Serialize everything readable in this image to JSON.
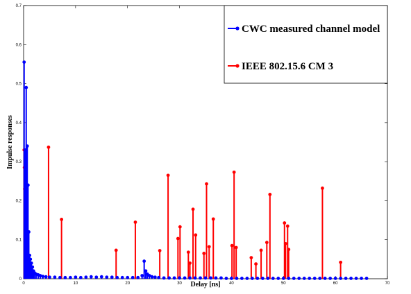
{
  "chart_data": {
    "type": "stem",
    "title": "",
    "xlabel": "Delay [ns]",
    "ylabel": "Impulse responses",
    "xlim": [
      0,
      70
    ],
    "ylim": [
      0,
      0.7
    ],
    "xticks": [
      0,
      10,
      20,
      30,
      40,
      50,
      60,
      70
    ],
    "yticks": [
      0,
      0.1,
      0.2,
      0.3,
      0.4,
      0.5,
      0.6,
      0.7
    ],
    "xtick_labels": [
      "0",
      "10",
      "20",
      "30",
      "40",
      "50",
      "60",
      "70"
    ],
    "ytick_labels": [
      "0",
      "0.1",
      "0.2",
      "0.3",
      "0.4",
      "0.5",
      "0.6",
      "0.7"
    ],
    "grid": false,
    "legend_position": "top-right",
    "series": [
      {
        "name": "CWC measured channel model",
        "color": "#0000ff",
        "x": [
          0.1,
          0.3,
          0.5,
          0.7,
          0.85,
          1.0,
          1.15,
          1.3,
          1.5,
          1.7,
          1.9,
          2.1,
          2.4,
          2.8,
          3.2,
          3.7,
          4.3,
          5.0,
          6.0,
          7.0,
          8.0,
          9.0,
          10.0,
          11.0,
          12.0,
          13.0,
          14.0,
          15.0,
          16.0,
          17.0,
          18.0,
          19.0,
          20.0,
          21.0,
          22.0,
          22.8,
          23.2,
          23.5,
          23.8,
          24.2,
          24.7,
          25.3,
          26.0,
          27.0,
          28.0,
          29.0,
          30.0,
          31.0,
          32.0,
          33.0,
          34.0,
          35.0,
          36.0,
          37.0,
          38.0,
          39.0,
          40.0,
          41.0,
          42.0,
          43.0,
          44.0,
          45.0,
          46.0,
          47.0,
          48.0,
          49.0,
          50.0,
          51.0,
          52.0,
          53.0,
          54.0,
          55.0,
          56.0,
          57.0,
          58.0,
          59.0,
          60.0,
          61.0,
          62.0,
          63.0,
          64.0,
          65.0,
          66.0
        ],
        "values": [
          0.555,
          0.33,
          0.49,
          0.34,
          0.24,
          0.12,
          0.06,
          0.05,
          0.04,
          0.03,
          0.02,
          0.015,
          0.012,
          0.01,
          0.008,
          0.006,
          0.005,
          0.004,
          0.004,
          0.003,
          0.003,
          0.003,
          0.004,
          0.003,
          0.004,
          0.005,
          0.004,
          0.005,
          0.004,
          0.004,
          0.003,
          0.003,
          0.003,
          0.003,
          0.003,
          0.008,
          0.045,
          0.02,
          0.012,
          0.008,
          0.005,
          0.004,
          0.003,
          0.002,
          0.002,
          0.002,
          0.002,
          0.002,
          0.002,
          0.002,
          0.002,
          0.002,
          0.002,
          0.002,
          0.002,
          0.001,
          0.001,
          0.001,
          0.001,
          0.001,
          0.001,
          0.001,
          0.001,
          0.001,
          0.001,
          0.001,
          0.001,
          0.001,
          0.001,
          0.001,
          0.001,
          0.001,
          0.001,
          0.001,
          0.001,
          0.001,
          0.001,
          0.001,
          0.001,
          0.001,
          0.001,
          0.001,
          0.001
        ]
      },
      {
        "name": "IEEE 802.15.6 CM 3",
        "color": "#ff0000",
        "x": [
          0.1,
          0.15,
          0.2,
          0.25,
          0.3,
          0.35,
          0.4,
          0.45,
          0.5,
          0.6,
          0.7,
          0.8,
          0.9,
          1.0,
          1.2,
          4.8,
          7.3,
          17.8,
          21.5,
          26.2,
          27.8,
          29.7,
          30.1,
          31.7,
          32.0,
          32.6,
          33.1,
          34.7,
          35.2,
          35.7,
          36.5,
          40.1,
          40.5,
          40.9,
          43.8,
          44.7,
          45.7,
          46.8,
          47.4,
          50.2,
          50.4,
          50.8,
          51.0,
          57.5,
          61.0
        ],
        "values": [
          0.33,
          0.285,
          0.23,
          0.15,
          0.13,
          0.1,
          0.08,
          0.06,
          0.05,
          0.045,
          0.04,
          0.03,
          0.02,
          0.015,
          0.01,
          0.337,
          0.152,
          0.073,
          0.145,
          0.072,
          0.265,
          0.103,
          0.133,
          0.068,
          0.04,
          0.178,
          0.112,
          0.065,
          0.243,
          0.082,
          0.153,
          0.085,
          0.273,
          0.08,
          0.054,
          0.038,
          0.073,
          0.093,
          0.216,
          0.143,
          0.09,
          0.135,
          0.075,
          0.232,
          0.042
        ]
      }
    ]
  }
}
